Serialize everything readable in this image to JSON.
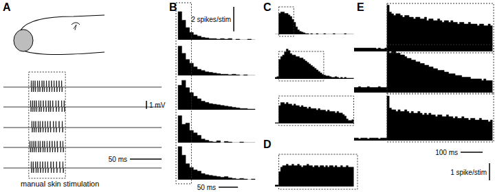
{
  "chart_data": [
    {
      "type": "line",
      "title": "A",
      "xlim": [
        0,
        250
      ],
      "ylim": [
        -1.2,
        1.2
      ],
      "tick_labels": false,
      "color": "#000000",
      "stimulus": [
        40,
        98
      ],
      "annotations": [
        "manual skin stimulation"
      ],
      "baseline": 0,
      "spike_range": [
        -0.6,
        0.8
      ],
      "series": [
        {
          "spike_times": [
            44,
            47,
            50,
            54,
            57,
            61,
            64,
            68,
            72,
            76,
            80,
            84,
            88,
            92
          ]
        },
        {
          "spike_times": [
            43,
            46,
            49,
            52,
            56,
            59,
            63,
            67,
            71,
            74,
            78,
            83,
            87,
            92,
            96
          ]
        },
        {
          "spike_times": [
            45,
            48,
            51,
            55,
            58,
            62,
            66,
            70,
            74,
            79,
            83,
            88,
            93
          ]
        },
        {
          "spike_times": [
            42,
            45,
            48,
            51,
            55,
            58,
            62,
            65,
            69,
            73,
            77,
            81,
            85,
            90,
            94
          ]
        },
        {
          "spike_times": [
            44,
            47,
            51,
            54,
            58,
            62,
            66,
            70,
            75,
            79,
            84,
            89,
            94
          ]
        }
      ],
      "scale_bars": [
        {
          "axis": "y",
          "value": 1,
          "label": "1 mV"
        },
        {
          "axis": "x",
          "value": 50,
          "label": "50 ms"
        }
      ]
    },
    {
      "type": "histogram",
      "title": "B",
      "xlim": [
        -5,
        205
      ],
      "ylim": [
        0,
        2.8
      ],
      "tick_labels": false,
      "color": "#000000",
      "stimulus": [
        -5,
        35
      ],
      "bins": [
        0,
        10,
        20,
        30,
        40,
        50,
        60,
        70,
        80,
        90,
        100,
        110,
        120,
        130,
        140,
        150,
        160,
        170,
        180,
        190,
        200
      ],
      "series": [
        {
          "values": [
            2.3,
            1.6,
            1.0,
            0.6,
            0.4,
            0.3,
            0.2,
            0.15,
            0.1,
            0.1,
            0.05,
            0.1,
            0.05,
            0.1,
            0,
            0.05,
            0,
            0,
            0.05,
            0
          ]
        },
        {
          "values": [
            2.4,
            1.8,
            1.3,
            1.0,
            0.7,
            0.5,
            0.4,
            0.3,
            0.25,
            0.2,
            0.15,
            0.1,
            0.1,
            0.05,
            0.1,
            0.05,
            0,
            0.05,
            0,
            0
          ]
        },
        {
          "values": [
            2.0,
            2.4,
            1.8,
            1.4,
            1.1,
            0.9,
            0.7,
            0.6,
            0.5,
            0.45,
            0.4,
            0.35,
            0.3,
            0.25,
            0.2,
            0.15,
            0.1,
            0.1,
            0.05,
            0.05
          ]
        },
        {
          "values": [
            2.2,
            1.5,
            1.6,
            1.0,
            0.8,
            0.6,
            0.3,
            0.2,
            0.1,
            0.05,
            0.15,
            0,
            0.1,
            0.05,
            0,
            0,
            0.05,
            0,
            0,
            0
          ]
        },
        {
          "values": [
            2.7,
            2.0,
            1.3,
            1.0,
            0.8,
            0.7,
            0.5,
            0.4,
            0.35,
            0.3,
            0.25,
            0.2,
            0.25,
            0.15,
            0.1,
            0.05,
            0.1,
            0.05,
            0,
            0.05
          ]
        }
      ],
      "scale_bars": [
        {
          "axis": "y",
          "value": 2,
          "label": "2 spikes/stim"
        },
        {
          "axis": "x",
          "value": 50,
          "label": "50 ms"
        }
      ]
    },
    {
      "type": "histogram",
      "title": "C",
      "xlim": [
        -10,
        210
      ],
      "ylim": [
        0,
        2.3
      ],
      "tick_labels": false,
      "color": "#000000",
      "bins": [
        -10,
        -5,
        0,
        5,
        10,
        15,
        20,
        25,
        30,
        35,
        40,
        45,
        50,
        55,
        60,
        65,
        70,
        75,
        80,
        85,
        90,
        95,
        100,
        105,
        110,
        115,
        120,
        125,
        130,
        135,
        140,
        145,
        150,
        155,
        160,
        165,
        170,
        175,
        180,
        185,
        190,
        195,
        200
      ],
      "series": [
        {
          "stimulus": [
            0,
            40
          ],
          "values": [
            0,
            0,
            1.4,
            1.5,
            1.5,
            1.4,
            1.4,
            1.3,
            1.2,
            1.0,
            0.8,
            0.5,
            0.3,
            0.2,
            0.15,
            0.1,
            0.05,
            0.05,
            0,
            0.05,
            0,
            0,
            0.05,
            0,
            0,
            0,
            0.05,
            0,
            0,
            0,
            0,
            0.05,
            0,
            0,
            0,
            0,
            0,
            0.05,
            0,
            0,
            0,
            0
          ]
        },
        {
          "stimulus": [
            0,
            120
          ],
          "values": [
            0.1,
            0.15,
            1.3,
            1.5,
            1.6,
            1.8,
            2.0,
            1.9,
            1.7,
            1.6,
            1.6,
            1.5,
            1.5,
            1.4,
            1.4,
            1.3,
            1.2,
            1.1,
            1.0,
            0.9,
            0.8,
            0.7,
            0.6,
            0.5,
            0.4,
            0.3,
            0.25,
            0.2,
            0.2,
            0.15,
            0.1,
            0.1,
            0.15,
            0.1,
            0.05,
            0.1,
            0.05,
            0.1,
            0.05,
            0.05,
            0.05,
            0.05
          ]
        },
        {
          "stimulus": [
            0,
            200
          ],
          "values": [
            0.05,
            0.05,
            1.2,
            1.4,
            1.4,
            1.3,
            1.4,
            1.3,
            1.3,
            1.2,
            1.3,
            1.2,
            1.2,
            1.1,
            1.2,
            1.1,
            1.1,
            1.0,
            1.1,
            1.0,
            1.0,
            1.0,
            0.9,
            1.0,
            0.9,
            0.9,
            0.9,
            0.8,
            0.9,
            0.8,
            0.8,
            0.8,
            0.7,
            0.8,
            0.7,
            0.7,
            0.6,
            0.5,
            0.3,
            0.2,
            0.2,
            0.25
          ]
        }
      ]
    },
    {
      "type": "histogram",
      "title": "D",
      "xlim": [
        -10,
        210
      ],
      "ylim": [
        0,
        2.3
      ],
      "tick_labels": false,
      "color": "#000000",
      "stimulus": [
        0,
        210
      ],
      "bins": [
        -10,
        -5,
        0,
        5,
        10,
        15,
        20,
        25,
        30,
        35,
        40,
        45,
        50,
        55,
        60,
        65,
        70,
        75,
        80,
        85,
        90,
        95,
        100,
        105,
        110,
        115,
        120,
        125,
        130,
        135,
        140,
        145,
        150,
        155,
        160,
        165,
        170,
        175,
        180,
        185,
        190,
        195,
        200
      ],
      "series": [
        {
          "values": [
            0.1,
            0.1,
            1.0,
            1.3,
            1.4,
            1.4,
            1.5,
            1.4,
            1.4,
            1.5,
            1.4,
            1.4,
            1.5,
            1.4,
            1.3,
            1.4,
            1.4,
            1.5,
            1.4,
            1.4,
            1.3,
            1.4,
            1.4,
            1.3,
            1.4,
            1.4,
            1.3,
            1.4,
            1.3,
            1.4,
            1.4,
            1.3,
            1.4,
            1.3,
            1.3,
            1.4,
            1.3,
            1.3,
            1.4,
            1.3,
            1.3,
            1.3
          ]
        }
      ]
    },
    {
      "type": "histogram",
      "title": "E",
      "xlim": [
        -150,
        485
      ],
      "ylim": [
        0,
        2.8
      ],
      "tick_labels": false,
      "color": "#000000",
      "bins": [
        -150,
        -140,
        -130,
        -120,
        -110,
        -100,
        -90,
        -80,
        -70,
        -60,
        -50,
        -40,
        -30,
        -20,
        -10,
        0,
        10,
        20,
        30,
        40,
        50,
        60,
        70,
        80,
        90,
        100,
        110,
        120,
        130,
        140,
        150,
        160,
        170,
        180,
        190,
        200,
        210,
        220,
        230,
        240,
        250,
        260,
        270,
        280,
        290,
        300,
        310,
        320,
        330,
        340,
        350,
        360,
        370,
        380,
        390,
        400,
        410,
        420,
        430,
        440,
        450,
        460,
        470,
        480
      ],
      "series": [
        {
          "stimulus": [
            0,
            485
          ],
          "values": [
            0.2,
            0.2,
            0.2,
            0.2,
            0.2,
            0.2,
            0.2,
            0.2,
            0.2,
            0.2,
            0.15,
            0.2,
            0.15,
            0.15,
            0.2,
            2.7,
            2.3,
            2.2,
            2.1,
            2.2,
            2.2,
            2.1,
            2.0,
            2.1,
            2.1,
            2.0,
            2.0,
            1.9,
            2.0,
            2.0,
            1.9,
            1.9,
            2.0,
            1.8,
            1.9,
            1.9,
            1.8,
            1.8,
            1.9,
            1.8,
            1.7,
            1.8,
            1.8,
            1.7,
            1.8,
            1.7,
            1.7,
            1.6,
            1.7,
            1.7,
            1.6,
            1.6,
            1.7,
            1.6,
            1.6,
            1.6,
            1.5,
            1.6,
            1.6,
            1.5,
            1.5,
            1.6,
            1.5
          ]
        },
        {
          "stimulus": [
            0,
            485
          ],
          "values": [
            0.3,
            0.3,
            0.35,
            0.3,
            0.3,
            0.3,
            0.35,
            0.3,
            0.3,
            0.3,
            0.3,
            0.35,
            0.3,
            0.3,
            0.3,
            2.7,
            2.3,
            2.4,
            2.4,
            2.3,
            2.3,
            2.2,
            2.2,
            2.1,
            2.0,
            2.0,
            1.9,
            1.9,
            1.8,
            1.8,
            1.7,
            1.7,
            1.6,
            1.6,
            1.5,
            1.5,
            1.4,
            1.4,
            1.3,
            1.3,
            1.3,
            1.2,
            1.2,
            1.1,
            1.1,
            1.1,
            1.0,
            1.0,
            1.0,
            0.9,
            0.9,
            0.9,
            0.9,
            0.8,
            0.8,
            0.8,
            0.8,
            0.8,
            0.7,
            0.8,
            0.7,
            0.7,
            0.7
          ]
        },
        {
          "stimulus": [
            0,
            485
          ],
          "values": [
            0.15,
            0.15,
            0.1,
            0.15,
            0.15,
            0.15,
            0.1,
            0.15,
            0.15,
            0.15,
            0.15,
            0.1,
            0.15,
            0.15,
            0.15,
            2.6,
            1.9,
            1.8,
            1.8,
            1.7,
            1.8,
            1.7,
            1.7,
            1.8,
            1.7,
            1.6,
            1.7,
            1.6,
            1.6,
            1.7,
            1.6,
            1.5,
            1.6,
            1.5,
            1.6,
            1.5,
            1.5,
            1.4,
            1.5,
            1.5,
            1.4,
            1.4,
            1.5,
            1.4,
            1.4,
            1.3,
            1.4,
            1.3,
            1.3,
            1.4,
            1.3,
            1.3,
            1.2,
            1.3,
            1.3,
            1.2,
            1.2,
            1.3,
            1.2,
            1.2,
            1.2,
            1.1,
            1.2
          ]
        }
      ],
      "scale_bars": [
        {
          "axis": "x",
          "value": 100,
          "label": "100 ms"
        },
        {
          "axis": "y",
          "value": 1,
          "label": "1 spike/stim"
        }
      ]
    }
  ]
}
